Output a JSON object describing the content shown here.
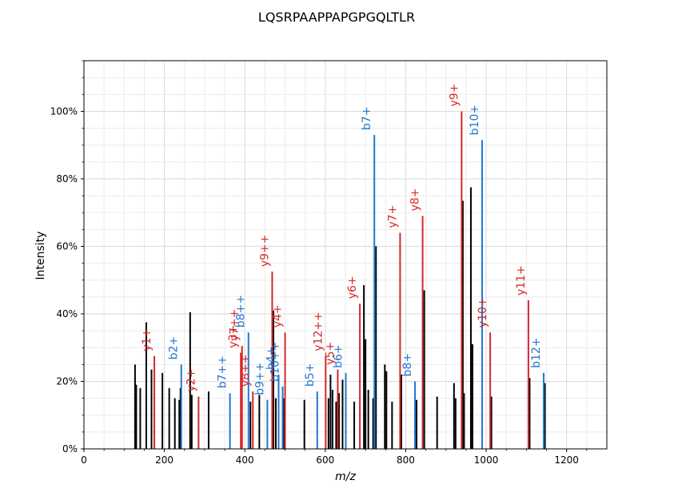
{
  "chart_data": {
    "type": "bar",
    "title": "LQSRPAAPPAPGPGQLTLR",
    "xlabel": "m/z",
    "ylabel": "Intensity",
    "xlim": [
      0,
      1300
    ],
    "ylim": [
      0,
      1.15
    ],
    "grid": true,
    "x_ticks": [
      0,
      200,
      400,
      600,
      800,
      1000,
      1200
    ],
    "x_tick_labels": [
      "0",
      "200",
      "400",
      "600",
      "800",
      "1000",
      "1200"
    ],
    "y_ticks": [
      0,
      0.2,
      0.4,
      0.6,
      0.8,
      1.0
    ],
    "y_tick_labels": [
      "0%",
      "20%",
      "40%",
      "60%",
      "80%",
      "100%"
    ],
    "colors": {
      "unassigned": "#000000",
      "b_ion": "#1f77d0",
      "y_ion": "#d62728"
    },
    "peaks": [
      {
        "mz": 127,
        "i": 0.25,
        "ion": "none"
      },
      {
        "mz": 130,
        "i": 0.19,
        "ion": "none"
      },
      {
        "mz": 140,
        "i": 0.18,
        "ion": "none"
      },
      {
        "mz": 155,
        "i": 0.375,
        "ion": "none"
      },
      {
        "mz": 168,
        "i": 0.235,
        "ion": "none"
      },
      {
        "mz": 175,
        "i": 0.275,
        "ion": "y",
        "label": "y1+"
      },
      {
        "mz": 195,
        "i": 0.225,
        "ion": "none"
      },
      {
        "mz": 212,
        "i": 0.18,
        "ion": "none"
      },
      {
        "mz": 226,
        "i": 0.15,
        "ion": "none"
      },
      {
        "mz": 237,
        "i": 0.145,
        "ion": "none"
      },
      {
        "mz": 240,
        "i": 0.18,
        "ion": "none"
      },
      {
        "mz": 242,
        "i": 0.25,
        "ion": "b",
        "label": "b2+"
      },
      {
        "mz": 264,
        "i": 0.405,
        "ion": "none"
      },
      {
        "mz": 268,
        "i": 0.16,
        "ion": "none"
      },
      {
        "mz": 285,
        "i": 0.155,
        "ion": "y",
        "label": "y2+"
      },
      {
        "mz": 310,
        "i": 0.17,
        "ion": "none"
      },
      {
        "mz": 363,
        "i": 0.165,
        "ion": "b",
        "label": "b7++"
      },
      {
        "mz": 390,
        "i": 0.285,
        "ion": "y",
        "label": "y3+"
      },
      {
        "mz": 393,
        "i": 0.305,
        "ion": "y",
        "label": "y7++"
      },
      {
        "mz": 409,
        "i": 0.345,
        "ion": "b",
        "label": "b8++"
      },
      {
        "mz": 414,
        "i": 0.14,
        "ion": "none"
      },
      {
        "mz": 420,
        "i": 0.17,
        "ion": "y",
        "label": "y8++"
      },
      {
        "mz": 436,
        "i": 0.16,
        "ion": "none"
      },
      {
        "mz": 456,
        "i": 0.145,
        "ion": "b",
        "label": "b9++"
      },
      {
        "mz": 468,
        "i": 0.525,
        "ion": "y",
        "label": "y9++"
      },
      {
        "mz": 471,
        "i": 0.41,
        "ion": "none"
      },
      {
        "mz": 477,
        "i": 0.15,
        "ion": "none"
      },
      {
        "mz": 484,
        "i": 0.22,
        "ion": "b",
        "label": "b4+"
      },
      {
        "mz": 494,
        "i": 0.185,
        "ion": "b",
        "label": "b10++"
      },
      {
        "mz": 497,
        "i": 0.15,
        "ion": "none"
      },
      {
        "mz": 500,
        "i": 0.345,
        "ion": "y",
        "label": "y4+"
      },
      {
        "mz": 548,
        "i": 0.145,
        "ion": "none"
      },
      {
        "mz": 580,
        "i": 0.17,
        "ion": "b",
        "label": "b5+"
      },
      {
        "mz": 601,
        "i": 0.275,
        "ion": "y",
        "label": "y12++"
      },
      {
        "mz": 608,
        "i": 0.15,
        "ion": "none"
      },
      {
        "mz": 613,
        "i": 0.22,
        "ion": "none"
      },
      {
        "mz": 618,
        "i": 0.175,
        "ion": "none"
      },
      {
        "mz": 627,
        "i": 0.14,
        "ion": "none"
      },
      {
        "mz": 631,
        "i": 0.235,
        "ion": "y",
        "label": "y5+"
      },
      {
        "mz": 634,
        "i": 0.165,
        "ion": "none"
      },
      {
        "mz": 643,
        "i": 0.205,
        "ion": "none"
      },
      {
        "mz": 651,
        "i": 0.225,
        "ion": "b",
        "label": "b6+"
      },
      {
        "mz": 672,
        "i": 0.14,
        "ion": "none"
      },
      {
        "mz": 686,
        "i": 0.43,
        "ion": "y",
        "label": "y6+"
      },
      {
        "mz": 696,
        "i": 0.485,
        "ion": "none"
      },
      {
        "mz": 700,
        "i": 0.325,
        "ion": "none"
      },
      {
        "mz": 707,
        "i": 0.175,
        "ion": "none"
      },
      {
        "mz": 719,
        "i": 0.15,
        "ion": "none"
      },
      {
        "mz": 722,
        "i": 0.93,
        "ion": "b",
        "label": "b7+"
      },
      {
        "mz": 726,
        "i": 0.6,
        "ion": "none"
      },
      {
        "mz": 748,
        "i": 0.25,
        "ion": "none"
      },
      {
        "mz": 752,
        "i": 0.23,
        "ion": "none"
      },
      {
        "mz": 766,
        "i": 0.14,
        "ion": "none"
      },
      {
        "mz": 786,
        "i": 0.64,
        "ion": "y",
        "label": "y7+"
      },
      {
        "mz": 789,
        "i": 0.22,
        "ion": "none"
      },
      {
        "mz": 823,
        "i": 0.2,
        "ion": "b",
        "label": "b8+"
      },
      {
        "mz": 827,
        "i": 0.145,
        "ion": "none"
      },
      {
        "mz": 842,
        "i": 0.69,
        "ion": "y",
        "label": "y8+"
      },
      {
        "mz": 846,
        "i": 0.47,
        "ion": "none"
      },
      {
        "mz": 878,
        "i": 0.155,
        "ion": "none"
      },
      {
        "mz": 920,
        "i": 0.195,
        "ion": "none"
      },
      {
        "mz": 924,
        "i": 0.15,
        "ion": "none"
      },
      {
        "mz": 939,
        "i": 1.0,
        "ion": "y",
        "label": "y9+"
      },
      {
        "mz": 942,
        "i": 0.735,
        "ion": "none"
      },
      {
        "mz": 945,
        "i": 0.165,
        "ion": "none"
      },
      {
        "mz": 962,
        "i": 0.775,
        "ion": "none"
      },
      {
        "mz": 966,
        "i": 0.31,
        "ion": "none"
      },
      {
        "mz": 990,
        "i": 0.915,
        "ion": "b",
        "label": "b10+"
      },
      {
        "mz": 1010,
        "i": 0.345,
        "ion": "y",
        "label": "y10+"
      },
      {
        "mz": 1013,
        "i": 0.155,
        "ion": "none"
      },
      {
        "mz": 1105,
        "i": 0.44,
        "ion": "y",
        "label": "y11+"
      },
      {
        "mz": 1108,
        "i": 0.21,
        "ion": "none"
      },
      {
        "mz": 1143,
        "i": 0.225,
        "ion": "b",
        "label": "b12+"
      },
      {
        "mz": 1146,
        "i": 0.195,
        "ion": "none"
      }
    ]
  }
}
